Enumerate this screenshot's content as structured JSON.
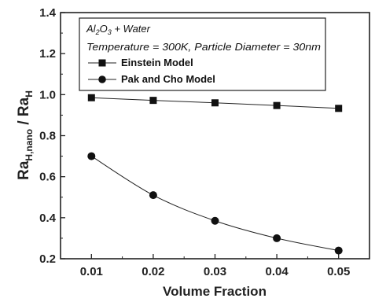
{
  "chart_data": {
    "type": "line",
    "xlabel": "Volume Fraction",
    "ylabel": {
      "main": "Ra",
      "sub1": "H,nano",
      "slash": " / Ra",
      "sub2": "H"
    },
    "x": [
      0.01,
      0.02,
      0.03,
      0.04,
      0.05
    ],
    "x_ticks": [
      "0.01",
      "0.02",
      "0.03",
      "0.04",
      "0.05"
    ],
    "xlim": [
      0.005,
      0.055
    ],
    "ylim": [
      0.2,
      1.4
    ],
    "y_ticks": [
      "0.2",
      "0.4",
      "0.6",
      "0.8",
      "1.0",
      "1.2",
      "1.4"
    ],
    "legend_placement": "top-left inside",
    "legend_header": {
      "line1": {
        "a": "Al",
        "b": "2",
        "c": "O",
        "d": "3",
        "e": " + Water"
      },
      "line2": "Temperature = 300K, Particle Diameter = 30nm"
    },
    "series": [
      {
        "name": "Einstein Model",
        "marker": "square",
        "values": [
          0.985,
          0.972,
          0.96,
          0.947,
          0.933
        ]
      },
      {
        "name": "Pak and Cho Model",
        "marker": "circle",
        "values": [
          0.7,
          0.51,
          0.385,
          0.3,
          0.24
        ]
      }
    ],
    "colors": {
      "line": "#222222",
      "marker": "#111111"
    }
  }
}
